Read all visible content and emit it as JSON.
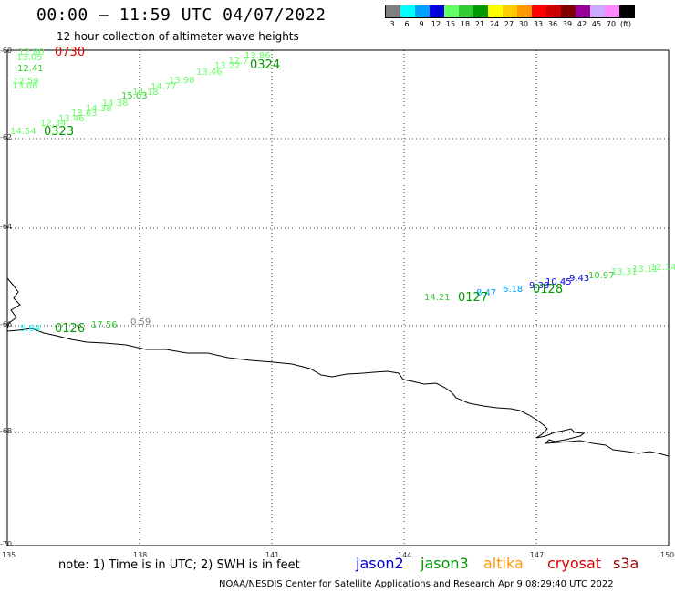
{
  "header": {
    "title": "00:00 — 11:59 UTC 04/07/2022",
    "subtitle": "12 hour collection of altimeter wave heights"
  },
  "scale": {
    "unit": "(ft)",
    "items": [
      {
        "label": "3",
        "color": "#7f7f7f"
      },
      {
        "label": "6",
        "color": "#00ffff"
      },
      {
        "label": "9",
        "color": "#00a0ff"
      },
      {
        "label": "12",
        "color": "#0000e0"
      },
      {
        "label": "15",
        "color": "#66ff66"
      },
      {
        "label": "18",
        "color": "#33cc33"
      },
      {
        "label": "21",
        "color": "#009900"
      },
      {
        "label": "24",
        "color": "#ffff00"
      },
      {
        "label": "27",
        "color": "#ffcc00"
      },
      {
        "label": "30",
        "color": "#ff9900"
      },
      {
        "label": "33",
        "color": "#ff0000"
      },
      {
        "label": "36",
        "color": "#cc0000"
      },
      {
        "label": "39",
        "color": "#800000"
      },
      {
        "label": "42",
        "color": "#990099"
      },
      {
        "label": "45",
        "color": "#ccaaff"
      },
      {
        "label": "70",
        "color": "#ff88ff"
      },
      {
        "label": "",
        "color": "#000000"
      }
    ]
  },
  "axes": {
    "lat_labels": [
      "-60",
      "-62",
      "-64",
      "-66",
      "-68",
      "-70"
    ],
    "lon_labels": [
      "135",
      "138",
      "141",
      "144",
      "147",
      "150"
    ]
  },
  "tracks": [
    {
      "time": "0730",
      "color": "#dd0000",
      "readings": [
        {
          "v": "12.80",
          "c": "#66ff66"
        },
        {
          "v": "13.05",
          "c": "#66ff66"
        },
        {
          "v": "12.41",
          "c": "#33cc33"
        },
        {
          "v": "12.59",
          "c": "#66ff66"
        },
        {
          "v": "13.08",
          "c": "#66ff66"
        }
      ]
    },
    {
      "time": "0324",
      "color": "#009900",
      "readings": [
        {
          "v": "13.86",
          "c": "#66ff66"
        },
        {
          "v": "12.7",
          "c": "#66ff66"
        },
        {
          "v": "13.22",
          "c": "#66ff66"
        },
        {
          "v": "13.46",
          "c": "#66ff66"
        },
        {
          "v": "13.98",
          "c": "#66ff66"
        },
        {
          "v": "14.77",
          "c": "#66ff66"
        },
        {
          "v": "14.18",
          "c": "#66ff66"
        },
        {
          "v": "15.03",
          "c": "#33cc33"
        },
        {
          "v": "14.38",
          "c": "#66ff66"
        },
        {
          "v": "14.38",
          "c": "#66ff66"
        },
        {
          "v": "13.63",
          "c": "#66ff66"
        }
      ]
    },
    {
      "time": "0323",
      "color": "#009900",
      "readings": [
        {
          "v": "13.46",
          "c": "#66ff66"
        },
        {
          "v": "12.34",
          "c": "#66ff66"
        },
        {
          "v": "14.54",
          "c": "#66ff66"
        }
      ]
    },
    {
      "time": "0128",
      "color": "#009900",
      "readings": [
        {
          "v": "9.38",
          "c": "#0000e0"
        },
        {
          "v": "10.45",
          "c": "#0000e0"
        },
        {
          "v": "9.43",
          "c": "#0000e0"
        },
        {
          "v": "10.97",
          "c": "#33cc33"
        },
        {
          "v": "13.31",
          "c": "#66ff66"
        },
        {
          "v": "13.11",
          "c": "#66ff66"
        },
        {
          "v": "12.14",
          "c": "#66ff66"
        }
      ]
    },
    {
      "time": "0127",
      "color": "#009900",
      "readings": [
        {
          "v": "14.21",
          "c": "#33cc33"
        },
        {
          "v": "8.47",
          "c": "#00a0ff"
        },
        {
          "v": "6.18",
          "c": "#00a0ff"
        }
      ]
    },
    {
      "time": "0126",
      "color": "#009900",
      "readings": [
        {
          "v": "5.64",
          "c": "#00ffff"
        },
        {
          "v": "17.56",
          "c": "#33cc33"
        },
        {
          "v": "0.59",
          "c": "#7f7f7f"
        }
      ]
    }
  ],
  "footer": {
    "note": "note: 1) Time is in UTC; 2) SWH is in feet",
    "satellites": [
      {
        "name": "jason2",
        "color": "#0000dd"
      },
      {
        "name": "jason3",
        "color": "#009900"
      },
      {
        "name": "altika",
        "color": "#ff9900"
      },
      {
        "name": "cryosat",
        "color": "#dd0000"
      },
      {
        "name": "s3a",
        "color": "#990000"
      }
    ],
    "credit": "NOAA/NESDIS Center for Satellite Applications and Research    Apr  9 08:29:40 UTC 2022"
  }
}
